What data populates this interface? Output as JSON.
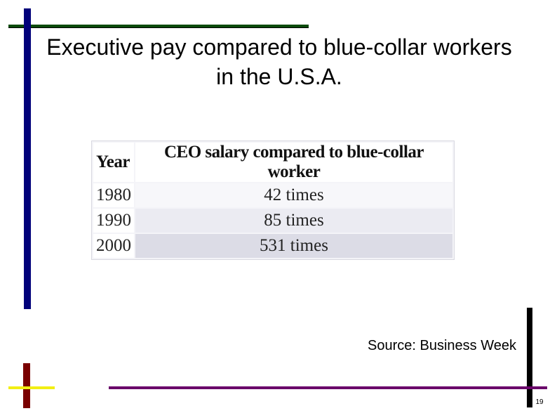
{
  "slide": {
    "title": "Executive pay compared to blue-collar workers in the U.S.A.",
    "source": "Source: Business Week",
    "page_number": "19"
  },
  "table": {
    "headers": [
      "Year",
      "CEO salary compared to blue-collar worker"
    ],
    "rows": [
      {
        "year": "1980",
        "ratio": "42 times"
      },
      {
        "year": "1990",
        "ratio": "85 times"
      },
      {
        "year": "2000",
        "ratio": "531 times"
      }
    ]
  },
  "colors": {
    "top_bar": "#0b4a0b",
    "left_bar": "#00007a",
    "right_bar": "#000000",
    "bottom_bar": "#6a006a",
    "small_vertical_bar": "#7a0000",
    "small_horizontal_bar": "#f2ef14"
  }
}
